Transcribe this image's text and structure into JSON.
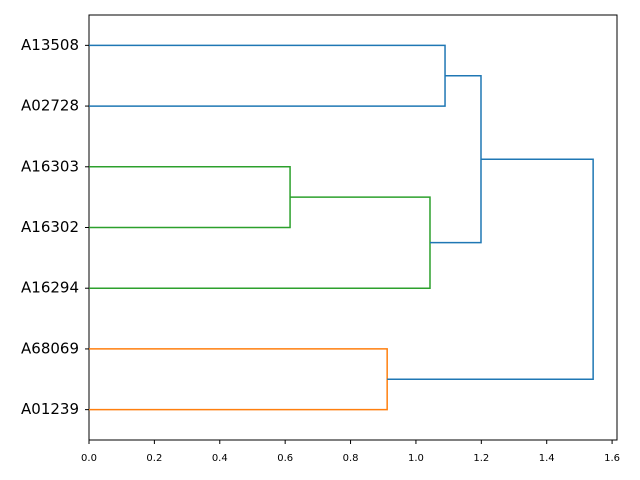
{
  "chart_data": {
    "type": "dendrogram",
    "orientation": "left",
    "xlim": [
      0,
      1.615
    ],
    "xticks": [
      {
        "value": 0,
        "label": "0.0"
      },
      0.2,
      0.4,
      0.6,
      0.8,
      {
        "value": 1,
        "label": "1.0"
      },
      1.2,
      1.4,
      1.6
    ],
    "tree": {
      "distance": 1.542,
      "color": "#1f77b4",
      "children": [
        {
          "distance": 1.199,
          "color": "#1f77b4",
          "children": [
            {
              "distance": 1.089,
              "color": "#1f77b4",
              "children": [
                {
                  "label": "A13508"
                },
                {
                  "label": "A02728"
                }
              ]
            },
            {
              "distance": 1.043,
              "color": "#2ca02c",
              "children": [
                {
                  "distance": 0.615,
                  "color": "#2ca02c",
                  "children": [
                    {
                      "label": "A16303"
                    },
                    {
                      "label": "A16302"
                    }
                  ]
                },
                {
                  "label": "A16294"
                }
              ]
            }
          ]
        },
        {
          "distance": 0.912,
          "color": "#ff7f0e",
          "children": [
            {
              "label": "A68069"
            },
            {
              "label": "A01239"
            }
          ]
        }
      ]
    }
  }
}
